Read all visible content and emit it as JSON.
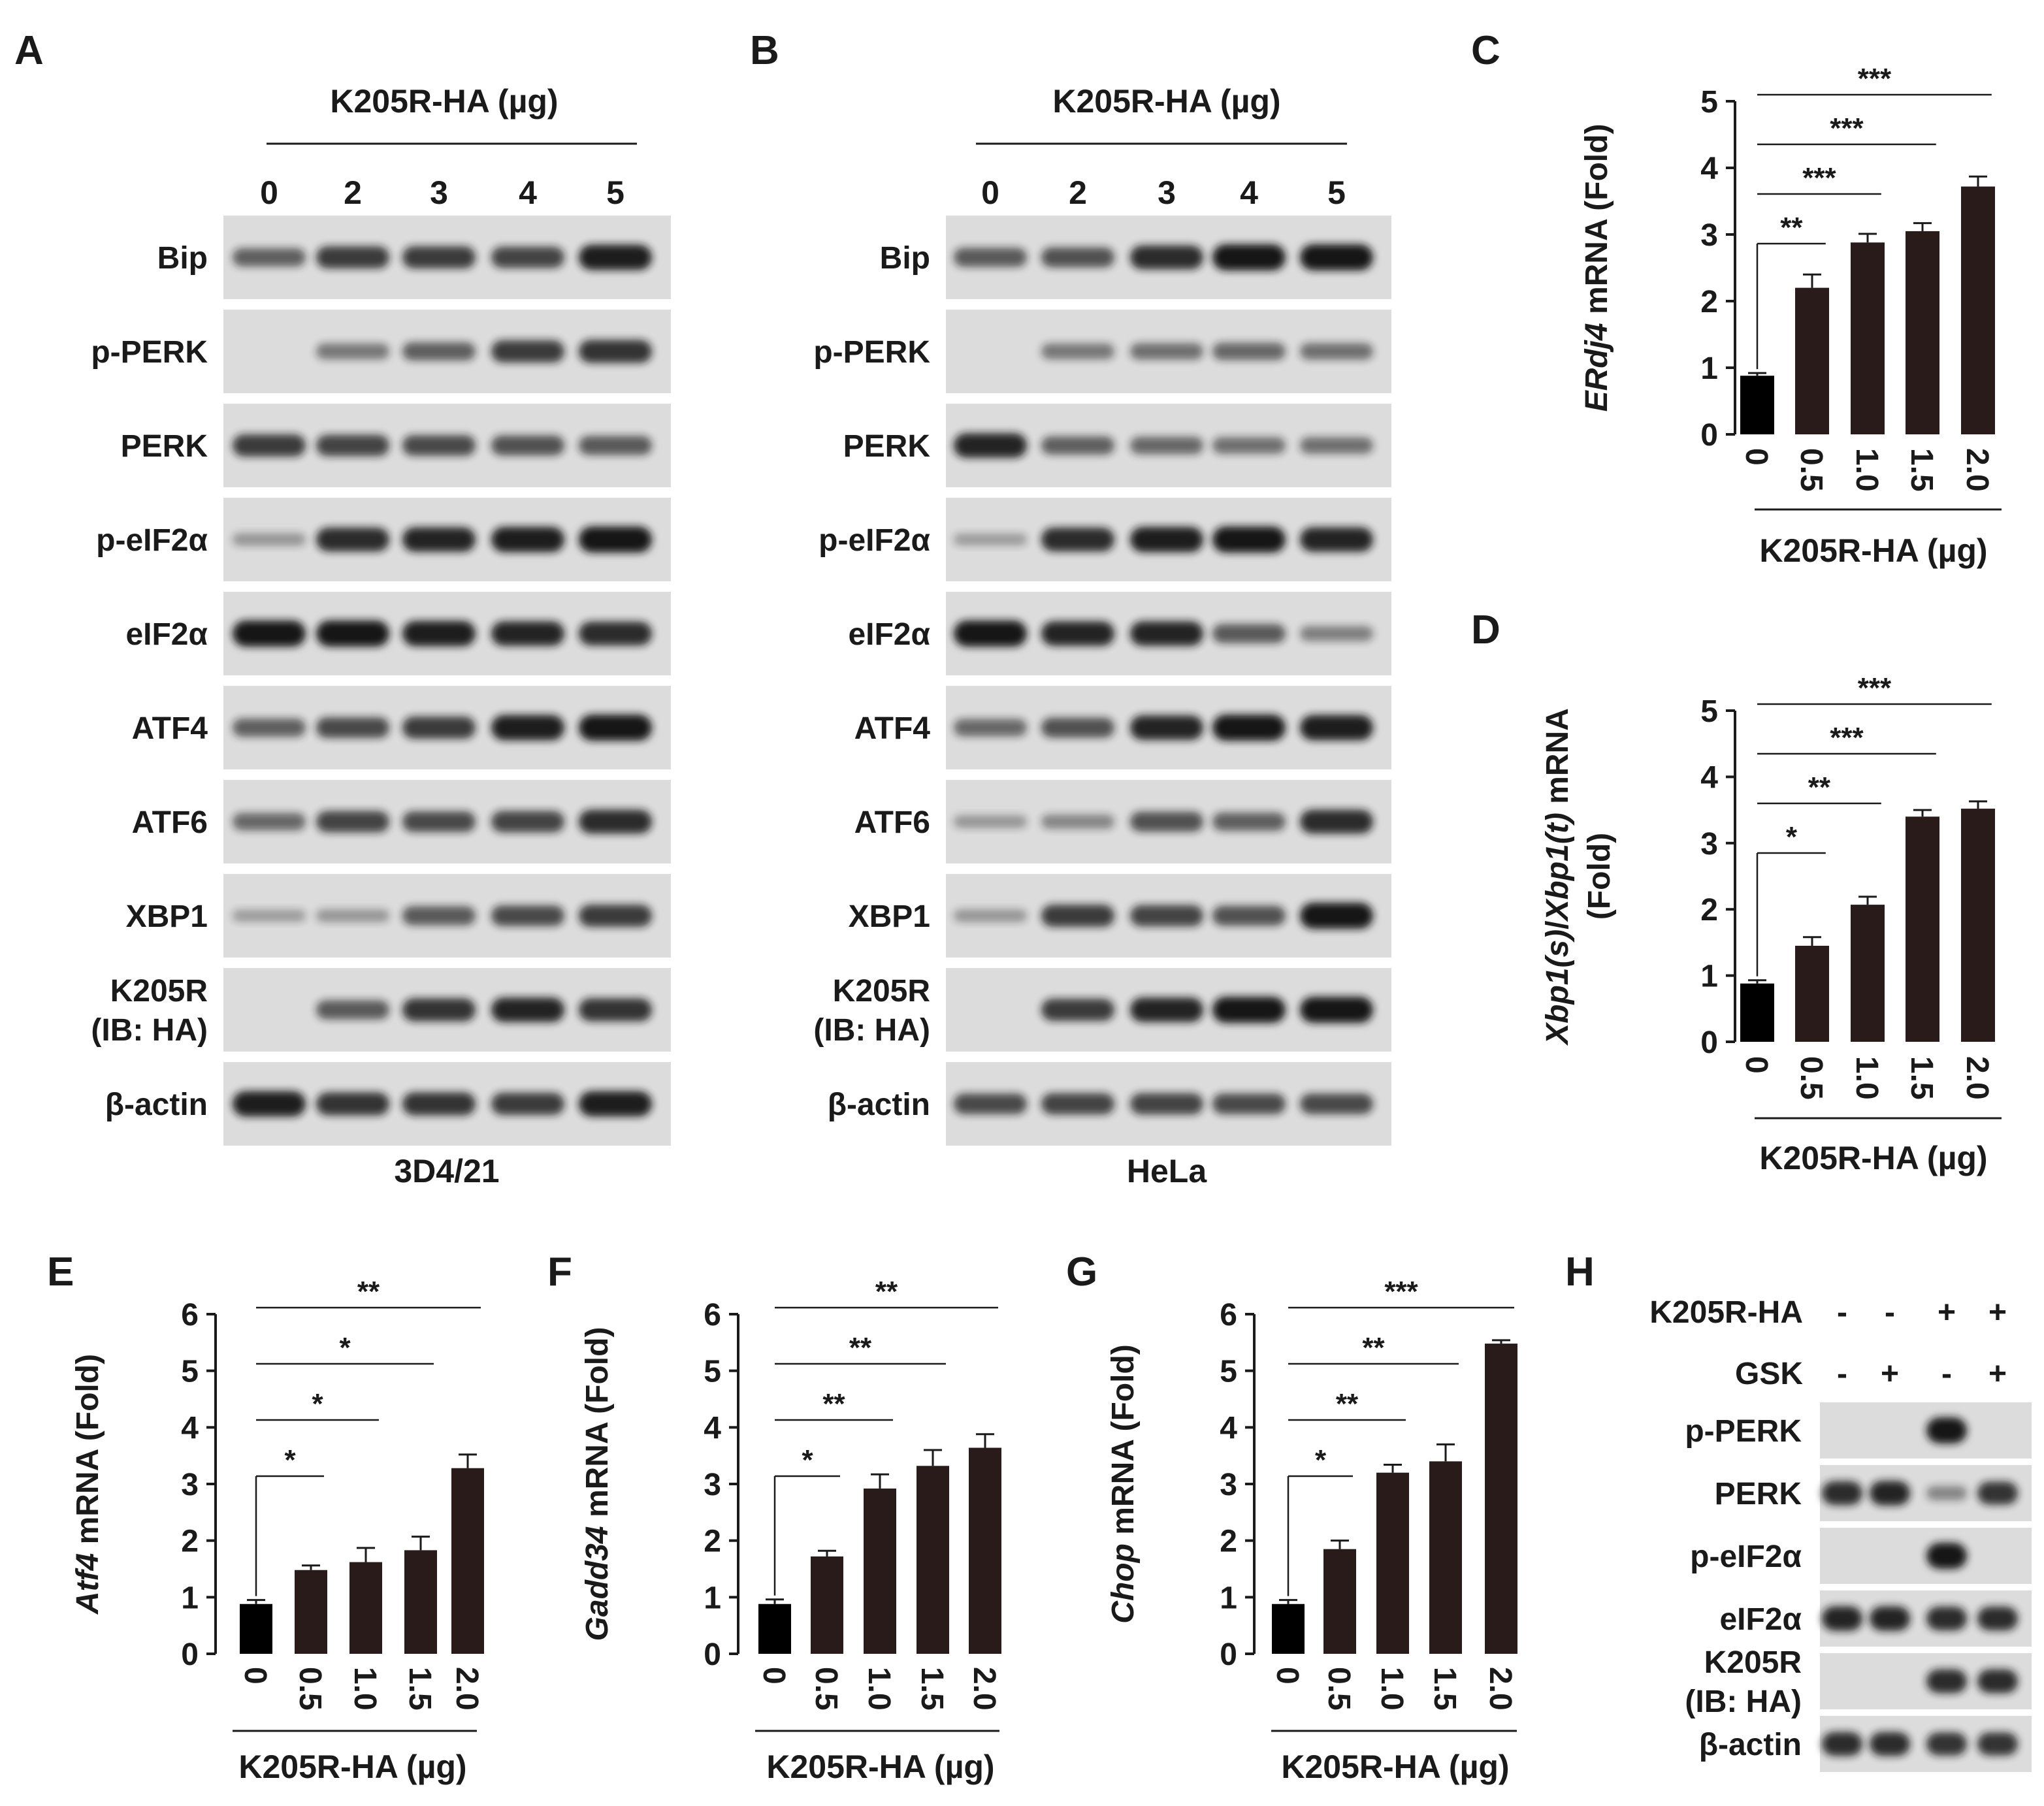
{
  "panels": {
    "A": {
      "letter": "A",
      "header": "K205R-HA (µg)",
      "lanes": [
        "0",
        "2",
        "3",
        "4",
        "5"
      ],
      "rows": [
        "Bip",
        "p-PERK",
        "PERK",
        "p-eIF2α",
        "eIF2α",
        "ATF4",
        "ATF6",
        "XBP1",
        [
          "K205R",
          "(IB: HA)"
        ],
        "β-actin"
      ],
      "intensity": [
        [
          0.5,
          0.75,
          0.75,
          0.7,
          0.95
        ],
        [
          0.0,
          0.35,
          0.5,
          0.75,
          0.8
        ],
        [
          0.75,
          0.7,
          0.65,
          0.6,
          0.55
        ],
        [
          0.15,
          0.85,
          0.9,
          0.95,
          1.0
        ],
        [
          1.0,
          1.0,
          0.95,
          0.9,
          0.85
        ],
        [
          0.5,
          0.65,
          0.75,
          0.95,
          1.0
        ],
        [
          0.45,
          0.7,
          0.65,
          0.7,
          0.85
        ],
        [
          0.1,
          0.15,
          0.55,
          0.65,
          0.75
        ],
        [
          0.0,
          0.55,
          0.8,
          0.9,
          0.8
        ],
        [
          0.95,
          0.8,
          0.8,
          0.75,
          0.95
        ]
      ],
      "footer": "3D4/21"
    },
    "B": {
      "letter": "B",
      "header": "K205R-HA (µg)",
      "lanes": [
        "0",
        "2",
        "3",
        "4",
        "5"
      ],
      "rows": [
        "Bip",
        "p-PERK",
        "PERK",
        "p-eIF2α",
        "eIF2α",
        "ATF4",
        "ATF6",
        "XBP1",
        [
          "K205R",
          "(IB: HA)"
        ],
        "β-actin"
      ],
      "intensity": [
        [
          0.55,
          0.6,
          0.85,
          1.0,
          1.0
        ],
        [
          0.0,
          0.35,
          0.4,
          0.45,
          0.4
        ],
        [
          0.9,
          0.5,
          0.45,
          0.4,
          0.4
        ],
        [
          0.1,
          0.85,
          0.95,
          1.0,
          0.9
        ],
        [
          1.0,
          0.9,
          0.9,
          0.55,
          0.3
        ],
        [
          0.45,
          0.6,
          0.9,
          1.0,
          0.95
        ],
        [
          0.15,
          0.25,
          0.6,
          0.5,
          0.85
        ],
        [
          0.15,
          0.75,
          0.7,
          0.6,
          1.0
        ],
        [
          0.0,
          0.75,
          0.9,
          1.0,
          1.0
        ],
        [
          0.65,
          0.7,
          0.7,
          0.65,
          0.65
        ]
      ],
      "footer": "HeLa"
    },
    "H": {
      "letter": "H",
      "conditions": [
        {
          "label": "K205R-HA",
          "signs": [
            "-",
            "-",
            "+",
            "+"
          ]
        },
        {
          "label": "GSK",
          "signs": [
            "-",
            "+",
            "-",
            "+"
          ]
        }
      ],
      "rows": [
        "p-PERK",
        "PERK",
        "p-eIF2α",
        "eIF2α",
        [
          "K205R",
          "(IB: HA)"
        ],
        "β-actin"
      ],
      "intensity": [
        [
          0.0,
          0.0,
          1.0,
          0.0
        ],
        [
          0.85,
          0.9,
          0.25,
          0.8
        ],
        [
          0.0,
          0.0,
          1.0,
          0.0
        ],
        [
          0.9,
          0.9,
          0.85,
          0.85
        ],
        [
          0.0,
          0.0,
          0.85,
          0.85
        ],
        [
          0.85,
          0.85,
          0.8,
          0.8
        ]
      ]
    }
  },
  "colors": {
    "bar": "#2a1b1b",
    "band": "#141414",
    "blot_bg": "#dcdcdc"
  },
  "chart_data": [
    {
      "panel": "C",
      "type": "bar",
      "categories": [
        "0",
        "0.5",
        "1.0",
        "1.5",
        "2.0"
      ],
      "values": [
        0.88,
        2.2,
        2.88,
        3.05,
        3.72
      ],
      "errors": [
        0.04,
        0.2,
        0.13,
        0.12,
        0.15
      ],
      "ylabel_italic": "ERdj4",
      "ylabel_rest": " mRNA (Fold)",
      "xlabel": "K205R-HA (µg)",
      "ylim": [
        0,
        5
      ],
      "yticks": [
        "0",
        "1",
        "2",
        "3",
        "4",
        "5"
      ],
      "significance": [
        {
          "to": 1,
          "label": "**"
        },
        {
          "to": 2,
          "label": "***"
        },
        {
          "to": 3,
          "label": "***"
        },
        {
          "to": 4,
          "label": "***"
        }
      ]
    },
    {
      "panel": "D",
      "type": "bar",
      "categories": [
        "0",
        "0.5",
        "1.0",
        "1.5",
        "2.0"
      ],
      "values": [
        0.88,
        1.45,
        2.07,
        3.4,
        3.52
      ],
      "errors": [
        0.05,
        0.13,
        0.12,
        0.1,
        0.11
      ],
      "ylabel_parts": [
        {
          "t": "Xbp1(s)",
          "i": true
        },
        {
          "t": "/",
          "i": false
        },
        {
          "t": "Xbp1(t)",
          "i": true
        },
        {
          "t": " mRNA",
          "i": false
        }
      ],
      "ylabel_line2": "(Fold)",
      "xlabel": "K205R-HA (µg)",
      "ylim": [
        0,
        5
      ],
      "yticks": [
        "0",
        "1",
        "2",
        "3",
        "4",
        "5"
      ],
      "significance": [
        {
          "to": 1,
          "label": "*"
        },
        {
          "to": 2,
          "label": "**"
        },
        {
          "to": 3,
          "label": "***"
        },
        {
          "to": 4,
          "label": "***"
        }
      ]
    },
    {
      "panel": "E",
      "type": "bar",
      "categories": [
        "0",
        "0.5",
        "1.0",
        "1.5",
        "2.0"
      ],
      "values": [
        0.88,
        1.48,
        1.62,
        1.83,
        3.28
      ],
      "errors": [
        0.07,
        0.08,
        0.25,
        0.24,
        0.24
      ],
      "ylabel_italic": "Atf4",
      "ylabel_rest": " mRNA (Fold)",
      "xlabel": "K205R-HA (µg)",
      "ylim": [
        0,
        6
      ],
      "yticks": [
        "0",
        "1",
        "2",
        "3",
        "4",
        "5",
        "6"
      ],
      "significance": [
        {
          "to": 1,
          "label": "*"
        },
        {
          "to": 2,
          "label": "*"
        },
        {
          "to": 3,
          "label": "*"
        },
        {
          "to": 4,
          "label": "**"
        }
      ]
    },
    {
      "panel": "F",
      "type": "bar",
      "categories": [
        "0",
        "0.5",
        "1.0",
        "1.5",
        "2.0"
      ],
      "values": [
        0.88,
        1.72,
        2.92,
        3.32,
        3.64
      ],
      "errors": [
        0.08,
        0.1,
        0.25,
        0.28,
        0.24
      ],
      "ylabel_italic": "Gadd34",
      "ylabel_rest": " mRNA (Fold)",
      "xlabel": "K205R-HA (µg)",
      "ylim": [
        0,
        6
      ],
      "yticks": [
        "0",
        "1",
        "2",
        "3",
        "4",
        "5",
        "6"
      ],
      "significance": [
        {
          "to": 1,
          "label": "*"
        },
        {
          "to": 2,
          "label": "**"
        },
        {
          "to": 3,
          "label": "**"
        },
        {
          "to": 4,
          "label": "**"
        }
      ]
    },
    {
      "panel": "G",
      "type": "bar",
      "categories": [
        "0",
        "0.5",
        "1.0",
        "1.5",
        "2.0"
      ],
      "values": [
        0.88,
        1.85,
        3.2,
        3.4,
        5.48
      ],
      "errors": [
        0.07,
        0.15,
        0.14,
        0.3,
        0.06
      ],
      "ylabel_italic": "Chop",
      "ylabel_rest": " mRNA (Fold)",
      "xlabel": "K205R-HA (µg)",
      "ylim": [
        0,
        6
      ],
      "yticks": [
        "0",
        "1",
        "2",
        "3",
        "4",
        "5",
        "6"
      ],
      "significance": [
        {
          "to": 1,
          "label": "*"
        },
        {
          "to": 2,
          "label": "**"
        },
        {
          "to": 3,
          "label": "**"
        },
        {
          "to": 4,
          "label": "***"
        }
      ]
    }
  ]
}
